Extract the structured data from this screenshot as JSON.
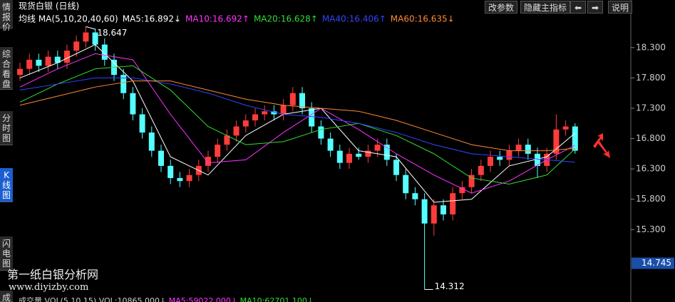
{
  "sidebar_tabs": [
    "情报价",
    "综合看盘",
    "分时图",
    "K线图",
    "闪电图",
    "成"
  ],
  "toolbar": {
    "buttons": [
      "改参数",
      "隐藏主指标",
      "说明"
    ]
  },
  "watermark": {
    "name": "第一纸白银分析网",
    "url": "www.diyizby.com"
  },
  "volume_header": [
    "成交量 VOL(5,10,15)",
    "VOL:10865.000↓",
    "MA5:59022.000↓",
    "MA10:62701.100↓"
  ],
  "chart_data": {
    "type": "candlestick",
    "title": "现货白银 (日线)",
    "indicator_label": "均线 MA(5,10,20,40,60)",
    "up_color": "#ff3c3c",
    "down_color": "#54ffff",
    "candles": {
      "open": [
        17.85,
        17.95,
        18.1,
        18.0,
        18.15,
        18.05,
        18.25,
        18.4,
        18.55,
        18.35,
        18.1,
        17.85,
        17.55,
        17.2,
        16.9,
        16.6,
        16.35,
        16.15,
        16.1,
        16.2,
        16.35,
        16.5,
        16.7,
        16.85,
        17.0,
        17.1,
        17.2,
        17.25,
        17.2,
        17.35,
        17.55,
        17.3,
        17.0,
        16.8,
        16.6,
        16.4,
        16.55,
        16.5,
        16.6,
        16.7,
        16.45,
        16.2,
        15.9,
        15.8,
        15.4,
        15.7,
        15.55,
        15.9,
        16.0,
        16.2,
        16.35,
        16.5,
        16.45,
        16.6,
        16.7,
        16.55,
        16.35,
        16.55,
        16.95,
        17.0
      ],
      "high": [
        18.05,
        18.2,
        18.2,
        18.25,
        18.25,
        18.35,
        18.5,
        18.647,
        18.6,
        18.45,
        18.2,
        17.95,
        17.65,
        17.3,
        17.0,
        16.7,
        16.45,
        16.25,
        16.3,
        16.45,
        16.6,
        16.8,
        16.95,
        17.1,
        17.2,
        17.3,
        17.35,
        17.35,
        17.45,
        17.65,
        17.65,
        17.4,
        17.1,
        16.9,
        16.7,
        16.65,
        16.65,
        16.7,
        16.8,
        16.8,
        16.55,
        16.3,
        16.0,
        15.9,
        15.8,
        15.8,
        16.0,
        16.1,
        16.3,
        16.45,
        16.6,
        16.6,
        16.7,
        16.8,
        16.8,
        16.65,
        16.65,
        17.2,
        17.1,
        17.05
      ],
      "low": [
        17.75,
        17.85,
        17.9,
        17.9,
        17.95,
        17.95,
        18.15,
        18.3,
        18.25,
        18.0,
        17.75,
        17.45,
        17.1,
        16.8,
        16.5,
        16.25,
        16.05,
        16.0,
        16.0,
        16.1,
        16.25,
        16.4,
        16.6,
        16.75,
        16.9,
        17.0,
        17.1,
        17.1,
        17.1,
        17.25,
        17.2,
        16.9,
        16.7,
        16.5,
        16.3,
        16.3,
        16.45,
        16.4,
        16.5,
        16.35,
        16.1,
        15.8,
        15.7,
        14.312,
        15.2,
        15.45,
        15.45,
        15.8,
        15.9,
        16.1,
        16.25,
        16.35,
        16.35,
        16.5,
        16.45,
        16.15,
        16.25,
        16.45,
        16.85,
        16.55
      ],
      "close": [
        17.95,
        18.1,
        18.0,
        18.15,
        18.05,
        18.25,
        18.4,
        18.55,
        18.35,
        18.1,
        17.85,
        17.55,
        17.2,
        16.9,
        16.6,
        16.35,
        16.15,
        16.1,
        16.2,
        16.35,
        16.5,
        16.7,
        16.85,
        17.0,
        17.1,
        17.2,
        17.25,
        17.2,
        17.35,
        17.55,
        17.3,
        17.0,
        16.8,
        16.6,
        16.4,
        16.55,
        16.5,
        16.6,
        16.7,
        16.45,
        16.2,
        15.9,
        15.8,
        15.4,
        15.7,
        15.55,
        15.9,
        16.0,
        16.2,
        16.35,
        16.5,
        16.45,
        16.6,
        16.7,
        16.55,
        16.35,
        16.55,
        16.95,
        17.0,
        16.6
      ]
    },
    "series": [
      {
        "name": "MA5:16.892↓",
        "color": "#ffffff",
        "x": [
          0,
          4,
          8,
          12,
          16,
          20,
          24,
          28,
          32,
          36,
          40,
          44,
          48,
          52,
          56,
          59
        ],
        "values": [
          17.8,
          18.05,
          18.35,
          17.75,
          16.5,
          16.2,
          16.85,
          17.2,
          17.3,
          16.6,
          16.5,
          15.75,
          15.8,
          16.35,
          16.5,
          16.89
        ]
      },
      {
        "name": "MA10:16.692↑",
        "color": "#ff33ff",
        "x": [
          0,
          4,
          8,
          12,
          16,
          20,
          24,
          28,
          32,
          36,
          40,
          44,
          48,
          52,
          56,
          59
        ],
        "values": [
          17.65,
          17.95,
          18.2,
          18.1,
          17.2,
          16.4,
          16.45,
          16.9,
          17.3,
          16.95,
          16.55,
          16.2,
          15.9,
          16.1,
          16.45,
          16.69
        ]
      },
      {
        "name": "MA20:16.628↑",
        "color": "#33dd33",
        "x": [
          0,
          4,
          8,
          12,
          16,
          20,
          24,
          28,
          32,
          36,
          40,
          44,
          48,
          52,
          56,
          59
        ],
        "values": [
          17.4,
          17.7,
          17.95,
          18.0,
          17.6,
          17.0,
          16.7,
          16.75,
          16.95,
          17.05,
          16.85,
          16.55,
          16.15,
          16.05,
          16.2,
          16.63
        ]
      },
      {
        "name": "MA40:16.406↑",
        "color": "#3344ff",
        "x": [
          0,
          4,
          8,
          12,
          16,
          20,
          24,
          28,
          32,
          36,
          40,
          44,
          48,
          52,
          56,
          59
        ],
        "values": [
          17.6,
          17.7,
          17.8,
          17.8,
          17.7,
          17.55,
          17.35,
          17.2,
          17.15,
          17.05,
          16.9,
          16.7,
          16.55,
          16.5,
          16.45,
          16.41
        ]
      },
      {
        "name": "MA60:16.635↓",
        "color": "#ff8833",
        "x": [
          0,
          4,
          8,
          12,
          16,
          20,
          24,
          28,
          32,
          36,
          40,
          44,
          48,
          52,
          56,
          59
        ],
        "values": [
          17.35,
          17.5,
          17.65,
          17.75,
          17.75,
          17.6,
          17.45,
          17.35,
          17.3,
          17.25,
          17.1,
          16.9,
          16.7,
          16.6,
          16.6,
          16.64
        ]
      }
    ],
    "ylim": [
      14.2,
      18.85
    ],
    "yticks": [
      {
        "value": 15.3,
        "label": "15.300"
      },
      {
        "value": 15.8,
        "label": "15.800"
      },
      {
        "value": 16.3,
        "label": "16.300"
      },
      {
        "value": 16.8,
        "label": "16.800"
      },
      {
        "value": 17.3,
        "label": "17.300"
      },
      {
        "value": 17.8,
        "label": "17.800"
      },
      {
        "value": 18.3,
        "label": "18.300"
      }
    ],
    "price_marker": 14.745,
    "high_label": 18.647,
    "low_label": 14.312
  }
}
